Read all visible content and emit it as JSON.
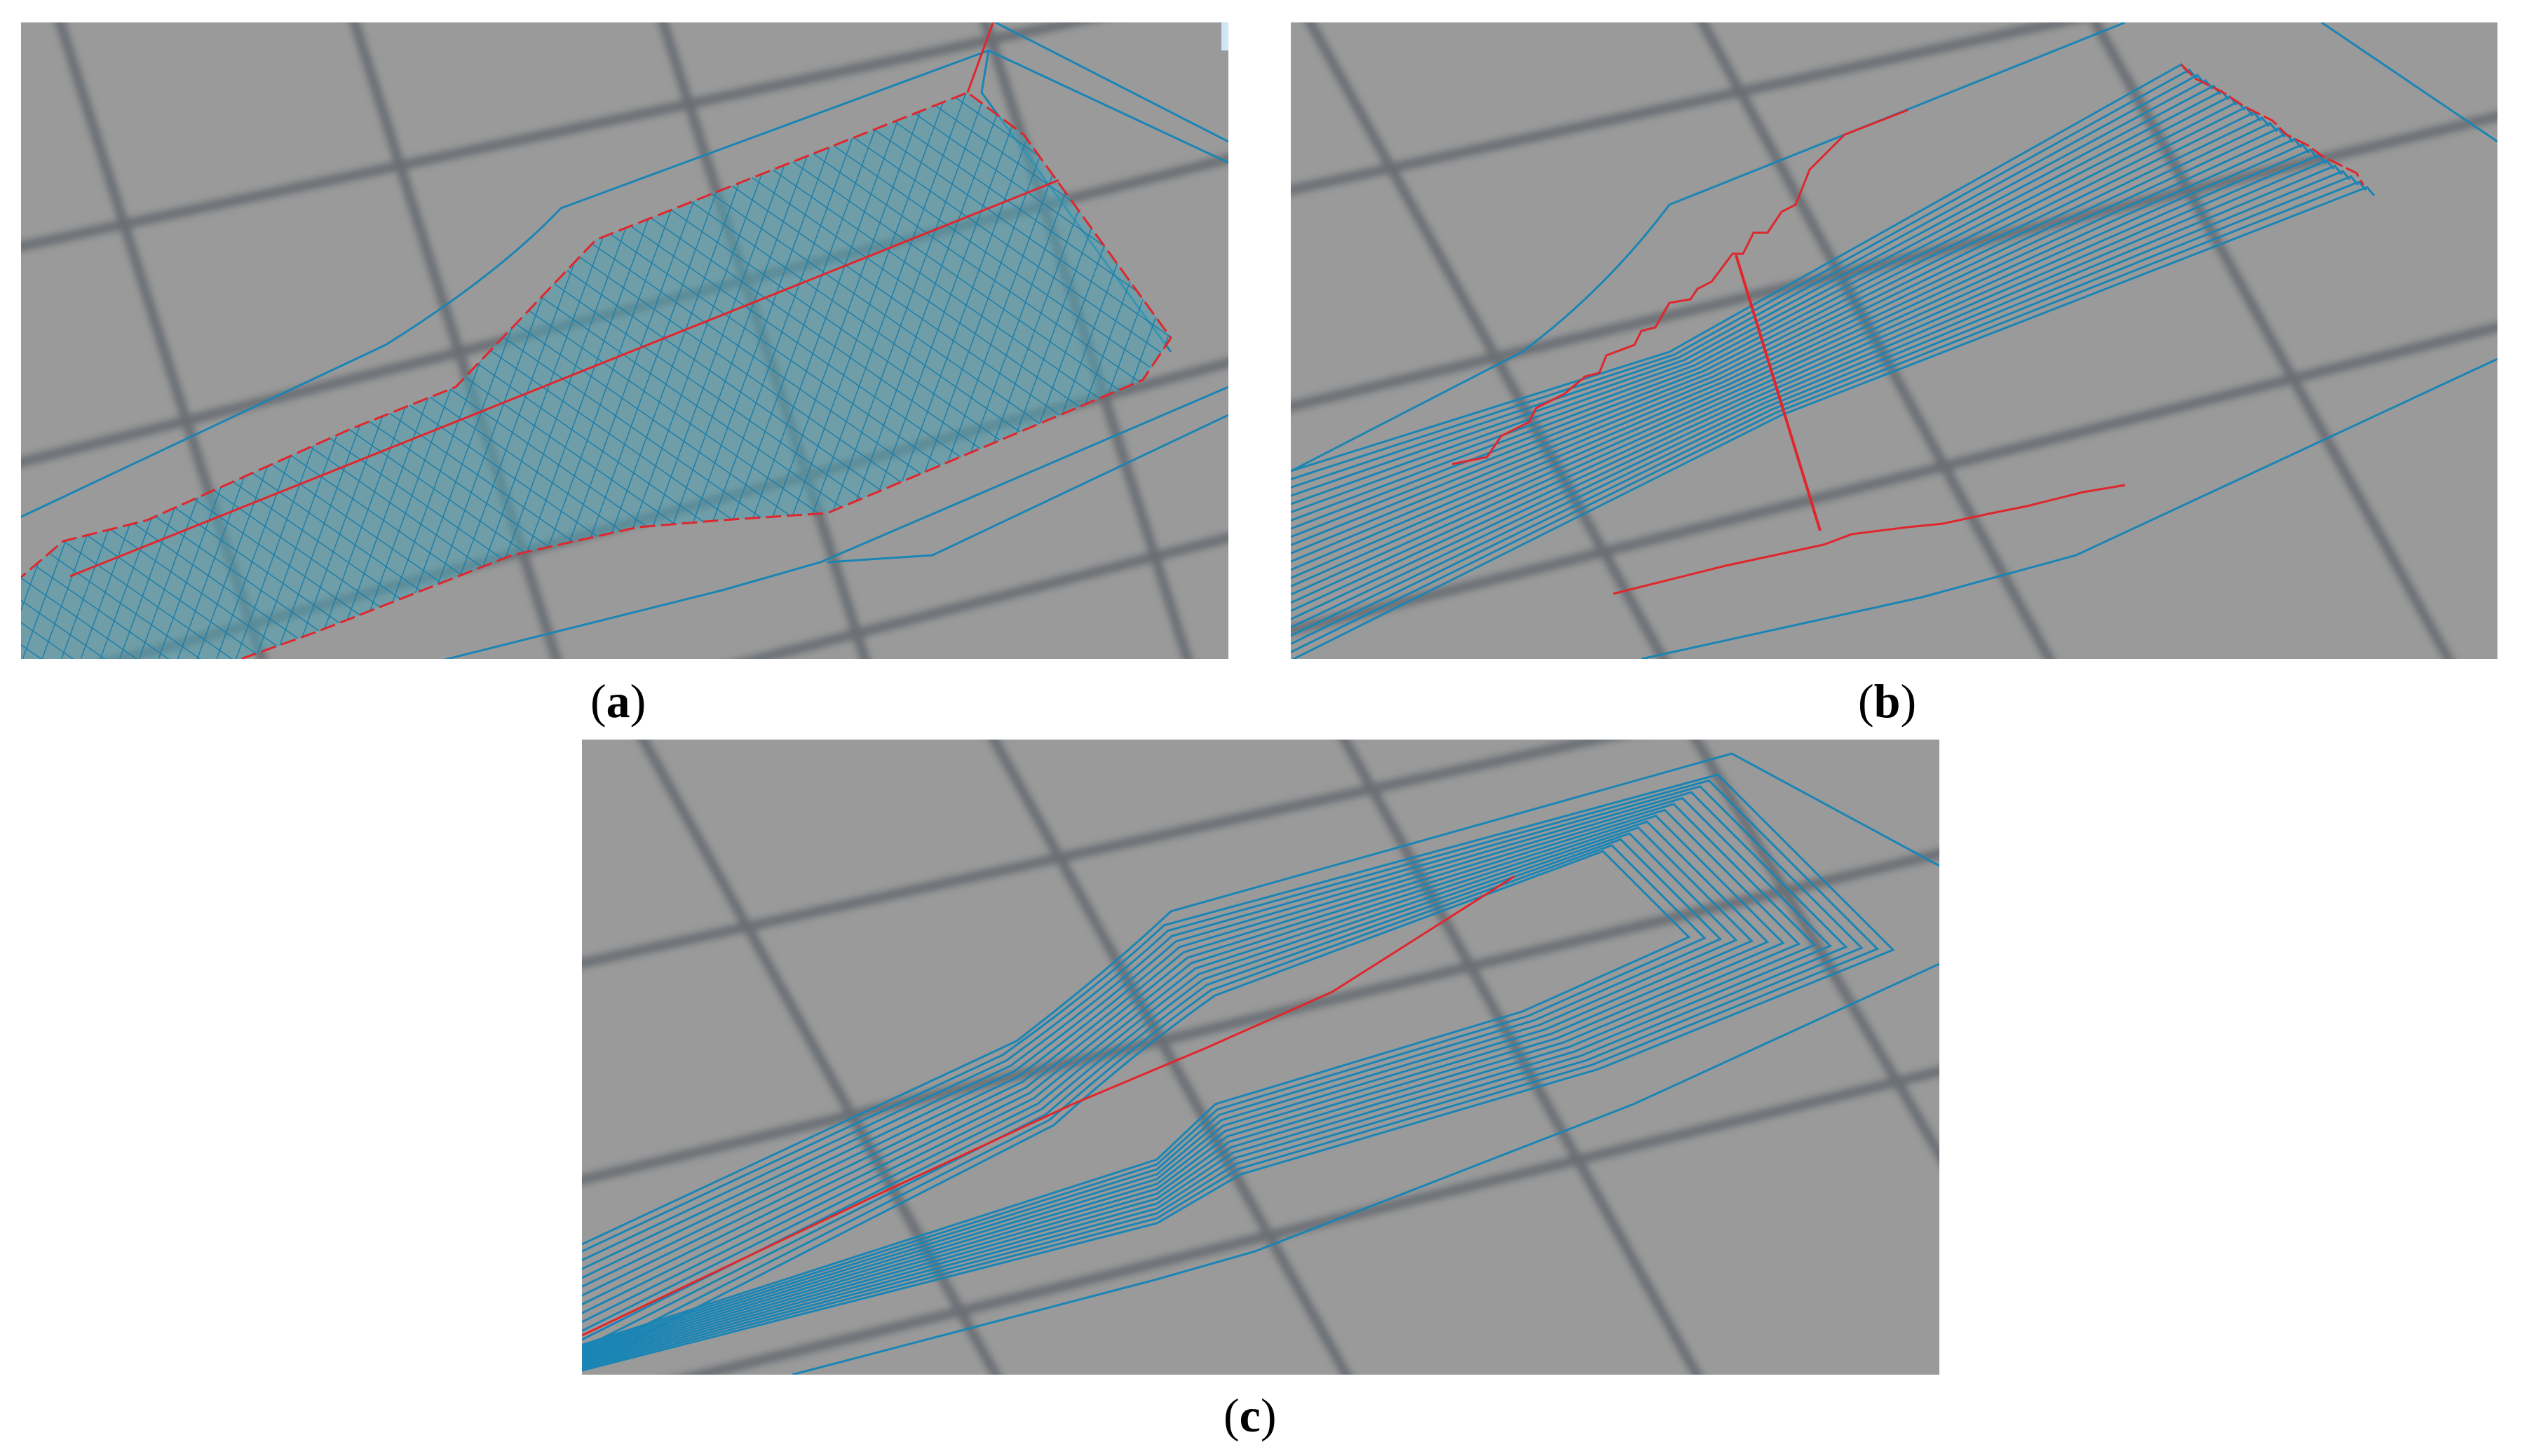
{
  "figure": {
    "panels": [
      {
        "id": "a",
        "caption_open": "(",
        "caption_letter": "a",
        "caption_close": ")"
      },
      {
        "id": "b",
        "caption_open": "(",
        "caption_letter": "b",
        "caption_close": ")"
      },
      {
        "id": "c",
        "caption_open": "(",
        "caption_letter": "c",
        "caption_close": ")"
      }
    ]
  },
  "colors": {
    "background": "#9a9a9a",
    "grid": "#5a6168",
    "toolpath": "#1a85b5",
    "fill_hatch": "#1e7ea8",
    "region_fill": "#4fa3b5",
    "seam": "#e0262d"
  }
}
